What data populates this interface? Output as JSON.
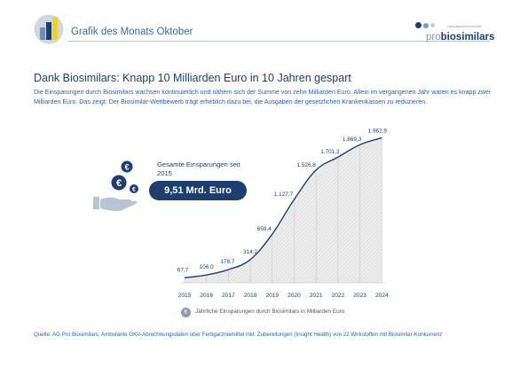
{
  "header": {
    "title": "Grafik des Monats Oktober"
  },
  "brand": {
    "small": "Arbeitsgemeinschaft",
    "pro": "pro",
    "name": "biosimilars",
    "colors": [
      "#1d3e6e",
      "#7e9ab8",
      "#c7cfd8"
    ]
  },
  "headline": "Dank Biosimilars: Knapp 10 Milliarden Euro in 10 Jahren gespart",
  "subtitle": "Die Einsparungen durch Biosimilars wachsen kontinuierlich und nähern sich der Summe von zehn Milliarden Euro. Allein im vergangenen Jahr waren es knapp zwei Milliarden Euro. Das zeigt: Der Biosimilar-Wettbewerb trägt erheblich dazu bei, die Ausgaben der gesetzlichen Krankenkassen zu reduzieren.",
  "kpi": {
    "label": "Gesamte Einsparungen seit 2015",
    "value": "9,51 Mrd. Euro",
    "icon": "euro-coin-hand-icon"
  },
  "legend": {
    "icon": "euro-coin-icon",
    "symbol": "€",
    "text": "Jährliche Einsparungen durch Biosimilars in Milliarden Euro"
  },
  "source": "Quelle: AG Pro Biosimilars, Ambulante GKV-Abrechnungsdaten über Fertigarzneimittel inkl. Zubereitungen (Insight Health) von 22 Wirkstoffen mit Biosimilar-Konkurrenz",
  "chart_data": {
    "type": "area",
    "title": "",
    "xlabel": "",
    "ylabel": "",
    "categories": [
      "2015",
      "2016",
      "2017",
      "2018",
      "2019",
      "2020",
      "2021",
      "2022",
      "2023",
      "2024"
    ],
    "series": [
      {
        "values": [
          67.7,
          106.0,
          178.7,
          314.2,
          659.4,
          1127.7,
          1526.8,
          1701.3,
          1869.3,
          1962.9
        ],
        "labels": [
          "67,7",
          "106,0",
          "178,7",
          "314,2",
          "659,4",
          "1.127,7",
          "1.526,8",
          "1.701,3",
          "1.869,3",
          "1.962,9"
        ]
      }
    ],
    "ylim": [
      0,
      2100
    ],
    "grid": true,
    "line_color": "#1d3e6e",
    "fill_color": "#e4e4e4",
    "hatch_color": "#ffffff"
  }
}
